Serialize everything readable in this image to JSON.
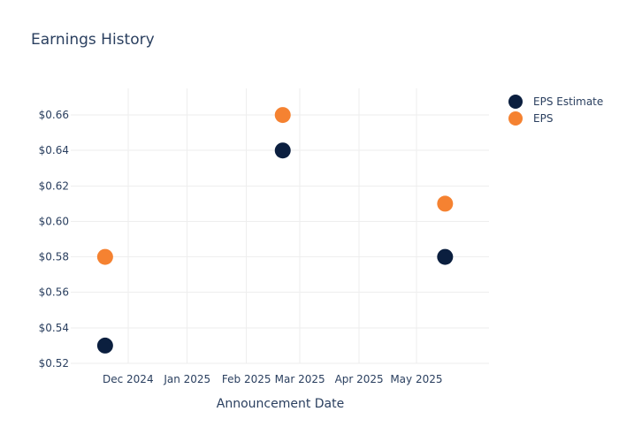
{
  "chart_data": {
    "type": "scatter",
    "title": "Earnings History",
    "xlabel": "Announcement Date",
    "ylabel": "",
    "x_tick_labels": [
      "Dec 2024",
      "Jan 2025",
      "Feb 2025",
      "Mar 2025",
      "Apr 2025",
      "May 2025"
    ],
    "x_tick_dates": [
      "2024-12-01",
      "2025-01-01",
      "2025-02-01",
      "2025-03-01",
      "2025-04-01",
      "2025-05-01"
    ],
    "xlim": [
      "2024-11-01",
      "2025-06-08"
    ],
    "y_tick_values": [
      0.52,
      0.54,
      0.56,
      0.58,
      0.6,
      0.62,
      0.64,
      0.66
    ],
    "y_tick_labels": [
      "$0.52",
      "$0.54",
      "$0.56",
      "$0.58",
      "$0.60",
      "$0.62",
      "$0.64",
      "$0.66"
    ],
    "ylim": [
      0.52,
      0.675
    ],
    "grid": true,
    "legend_position": "top-right",
    "series": [
      {
        "name": "EPS Estimate",
        "color": "#0b1f3f",
        "points": [
          {
            "x": "2024-11-19",
            "y": 0.53
          },
          {
            "x": "2025-02-20",
            "y": 0.64
          },
          {
            "x": "2025-05-16",
            "y": 0.58
          }
        ]
      },
      {
        "name": "EPS",
        "color": "#f58231",
        "points": [
          {
            "x": "2024-11-19",
            "y": 0.58
          },
          {
            "x": "2025-02-20",
            "y": 0.66
          },
          {
            "x": "2025-05-16",
            "y": 0.61
          }
        ]
      }
    ]
  }
}
